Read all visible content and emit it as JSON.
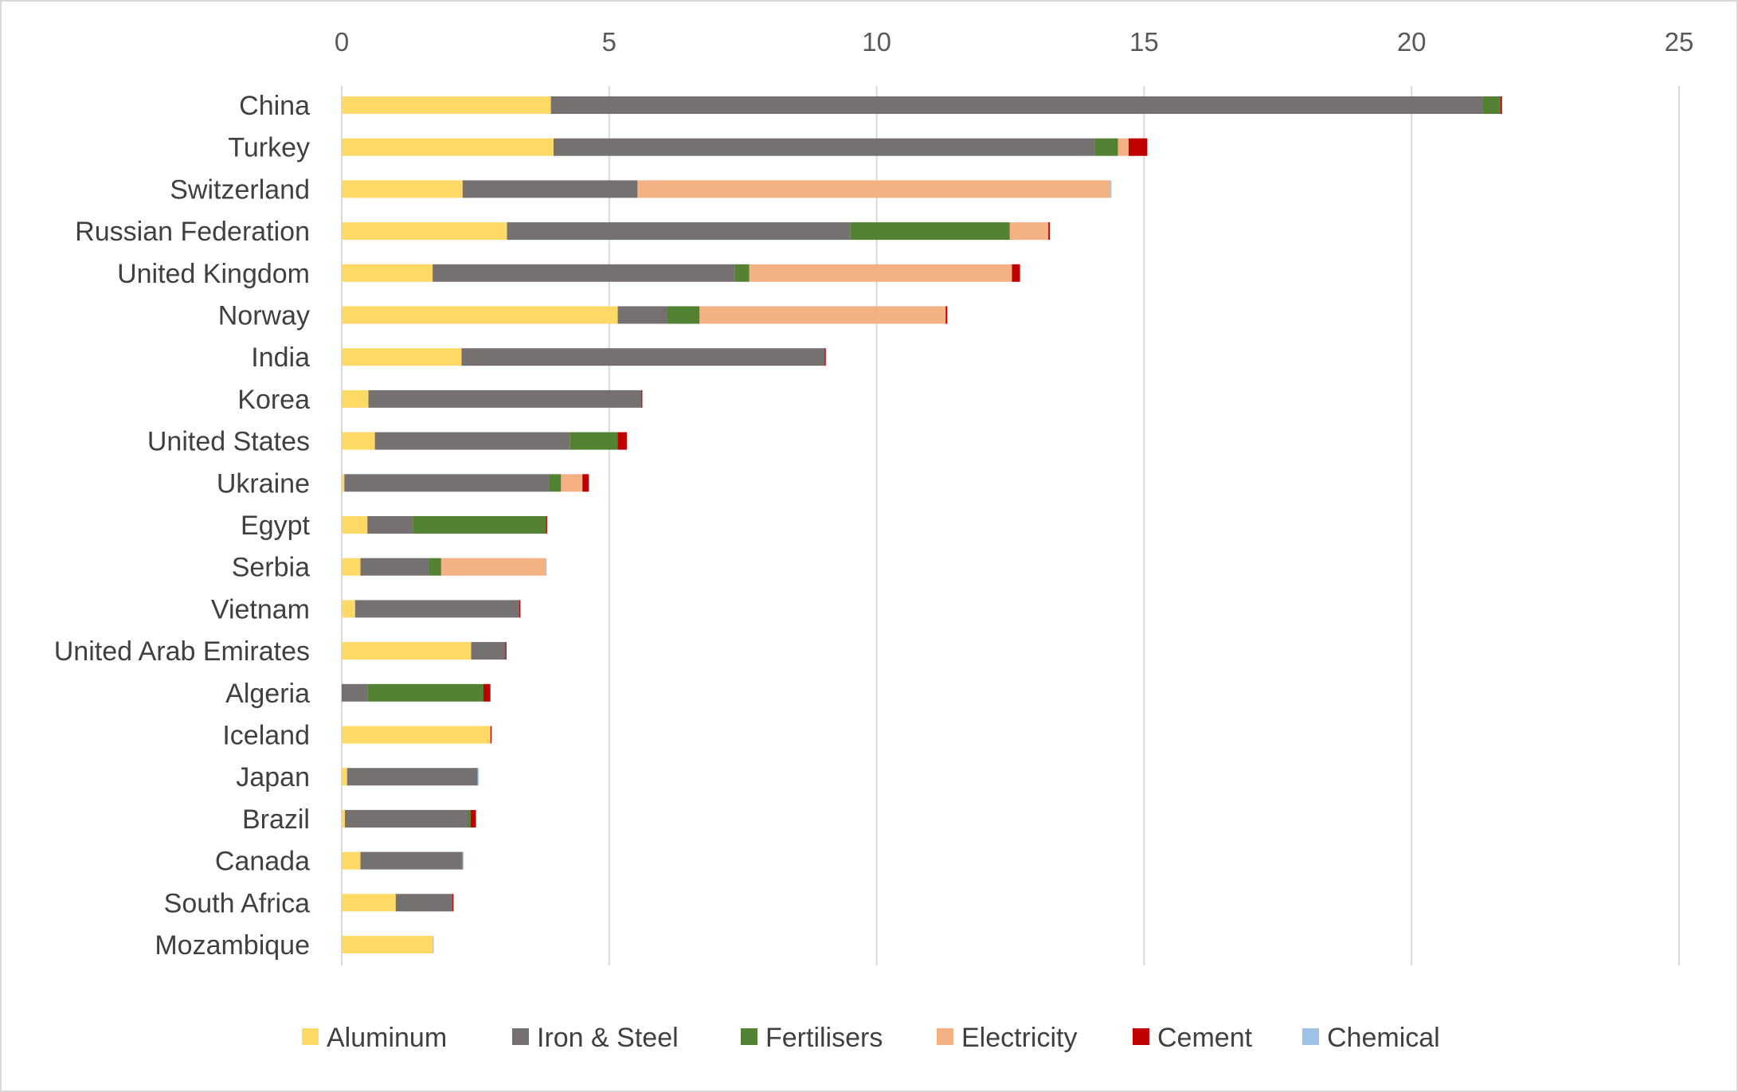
{
  "chart_data": {
    "type": "bar",
    "orientation": "horizontal",
    "stacked": true,
    "title": "",
    "xlabel": "",
    "ylabel": "",
    "xlim": [
      0,
      25
    ],
    "xticks": [
      "0",
      "5",
      "10",
      "15",
      "20",
      "25"
    ],
    "grid": true,
    "legend_position": "bottom",
    "categories": [
      "China",
      "Turkey",
      "Switzerland",
      "Russian Federation",
      "United Kingdom",
      "Norway",
      "India",
      "Korea",
      "United States",
      "Ukraine",
      "Egypt",
      "Serbia",
      "Vietnam",
      "United Arab Emirates",
      "Algeria",
      "Iceland",
      "Japan",
      "Brazil",
      "Canada",
      "South Africa",
      "Mozambique"
    ],
    "series": [
      {
        "name": "Aluminum",
        "color": "#FFD966",
        "values": [
          3.91,
          3.96,
          2.26,
          3.09,
          1.7,
          5.16,
          2.24,
          0.5,
          0.62,
          0.05,
          0.48,
          0.35,
          0.25,
          2.42,
          0.0,
          2.78,
          0.1,
          0.06,
          0.35,
          1.01,
          1.7
        ]
      },
      {
        "name": "Iron & Steel",
        "color": "#767171",
        "values": [
          17.42,
          10.12,
          3.27,
          6.42,
          5.65,
          0.93,
          6.79,
          5.1,
          3.65,
          3.82,
          0.85,
          1.28,
          3.07,
          0.64,
          0.48,
          0.0,
          2.44,
          2.3,
          1.91,
          1.06,
          0.0
        ]
      },
      {
        "name": "Fertilisers",
        "color": "#548235",
        "values": [
          0.33,
          0.43,
          0.0,
          2.98,
          0.27,
          0.6,
          0.0,
          0.0,
          0.89,
          0.23,
          2.49,
          0.23,
          0.0,
          0.0,
          2.17,
          0.0,
          0.0,
          0.05,
          0.0,
          0.0,
          0.0
        ]
      },
      {
        "name": "Electricity",
        "color": "#F4B183",
        "values": [
          0.0,
          0.2,
          8.84,
          0.72,
          4.91,
          4.6,
          0.0,
          0.0,
          0.0,
          0.4,
          0.0,
          1.95,
          0.0,
          0.0,
          0.0,
          0.0,
          0.0,
          0.0,
          0.0,
          0.0,
          0.0
        ]
      },
      {
        "name": "Cement",
        "color": "#C00000",
        "values": [
          0.03,
          0.35,
          0.0,
          0.03,
          0.15,
          0.03,
          0.02,
          0.02,
          0.17,
          0.12,
          0.02,
          0.0,
          0.02,
          0.02,
          0.13,
          0.02,
          0.0,
          0.1,
          0.0,
          0.02,
          0.0
        ]
      },
      {
        "name": "Chemical",
        "color": "#9DC3E6",
        "values": [
          0.0,
          0.0,
          0.02,
          0.0,
          0.0,
          0.0,
          0.0,
          0.0,
          0.0,
          0.0,
          0.0,
          0.02,
          0.0,
          0.0,
          0.0,
          0.0,
          0.02,
          0.0,
          0.02,
          0.0,
          0.02
        ]
      }
    ]
  }
}
